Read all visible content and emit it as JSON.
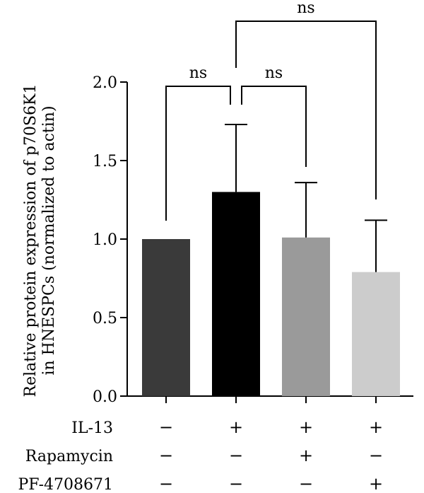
{
  "chart_data": {
    "type": "bar",
    "title": "",
    "ylabel_line1": "Relative protein expression of p70S6K1",
    "ylabel_line2": "in HNESPCs (normalized to actin)",
    "xlabel": "",
    "ylim": [
      0,
      2.0
    ],
    "yticks": [
      "0.0",
      "0.5",
      "1.0",
      "1.5",
      "2.0"
    ],
    "grid": false,
    "legend": "none",
    "series": [
      {
        "values": [
          1.0,
          1.3,
          1.01,
          0.79
        ],
        "errors": [
          0.0,
          0.43,
          0.35,
          0.33
        ],
        "colors": [
          "#3a3a3a",
          "#000000",
          "#9a9a9a",
          "#cccccc"
        ]
      }
    ],
    "conditions": [
      {
        "label": "IL-13",
        "signs": [
          "−",
          "+",
          "+",
          "+"
        ]
      },
      {
        "label": "Rapamycin",
        "signs": [
          "−",
          "−",
          "+",
          "−"
        ]
      },
      {
        "label": "PF-4708671",
        "signs": [
          "−",
          "−",
          "−",
          "+"
        ]
      }
    ],
    "comparisons": [
      {
        "from": 0,
        "to": 1,
        "label": "ns"
      },
      {
        "from": 1,
        "to": 2,
        "label": "ns"
      },
      {
        "from": 1,
        "to": 3,
        "label": "ns"
      }
    ]
  }
}
